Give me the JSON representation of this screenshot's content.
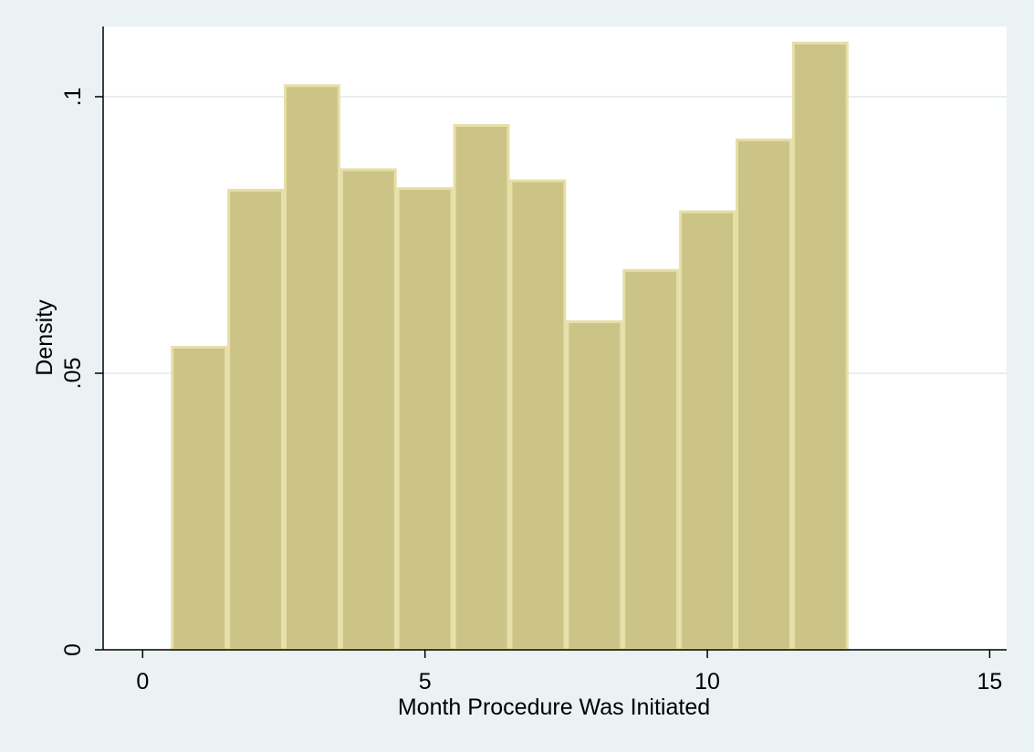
{
  "chart_data": {
    "type": "bar",
    "subtype": "histogram",
    "xlabel": "Month Procedure Was Initiated",
    "ylabel": "Density",
    "xlim": [
      -0.7,
      15.3
    ],
    "ylim": [
      0,
      0.1127
    ],
    "x_ticks": [
      {
        "value": 0,
        "label": "0"
      },
      {
        "value": 5,
        "label": "5"
      },
      {
        "value": 10,
        "label": "10"
      },
      {
        "value": 15,
        "label": "15"
      }
    ],
    "y_ticks": [
      {
        "value": 0,
        "label": "0"
      },
      {
        "value": 0.05,
        "label": ".05"
      },
      {
        "value": 0.1,
        "label": ".1"
      }
    ],
    "grid": {
      "horizontal": true,
      "vertical": false
    },
    "bins": [
      {
        "start": 0.5,
        "end": 1.5,
        "value": 0.0547
      },
      {
        "start": 1.5,
        "end": 2.5,
        "value": 0.0831
      },
      {
        "start": 2.5,
        "end": 3.5,
        "value": 0.102
      },
      {
        "start": 3.5,
        "end": 4.5,
        "value": 0.0868
      },
      {
        "start": 4.5,
        "end": 5.5,
        "value": 0.0834
      },
      {
        "start": 5.5,
        "end": 6.5,
        "value": 0.0948
      },
      {
        "start": 6.5,
        "end": 7.5,
        "value": 0.0848
      },
      {
        "start": 7.5,
        "end": 8.5,
        "value": 0.0593
      },
      {
        "start": 8.5,
        "end": 9.5,
        "value": 0.0686
      },
      {
        "start": 9.5,
        "end": 10.5,
        "value": 0.0792
      },
      {
        "start": 10.5,
        "end": 11.5,
        "value": 0.0922
      },
      {
        "start": 11.5,
        "end": 12.5,
        "value": 0.1097
      }
    ],
    "colors": {
      "background": "#eaf2f3",
      "plot_background": "#ffffff",
      "bar_fill": "#ccc386",
      "bar_outline": "#e6dfa8",
      "gridline": "#e6eff0",
      "axis": "#000000"
    }
  }
}
